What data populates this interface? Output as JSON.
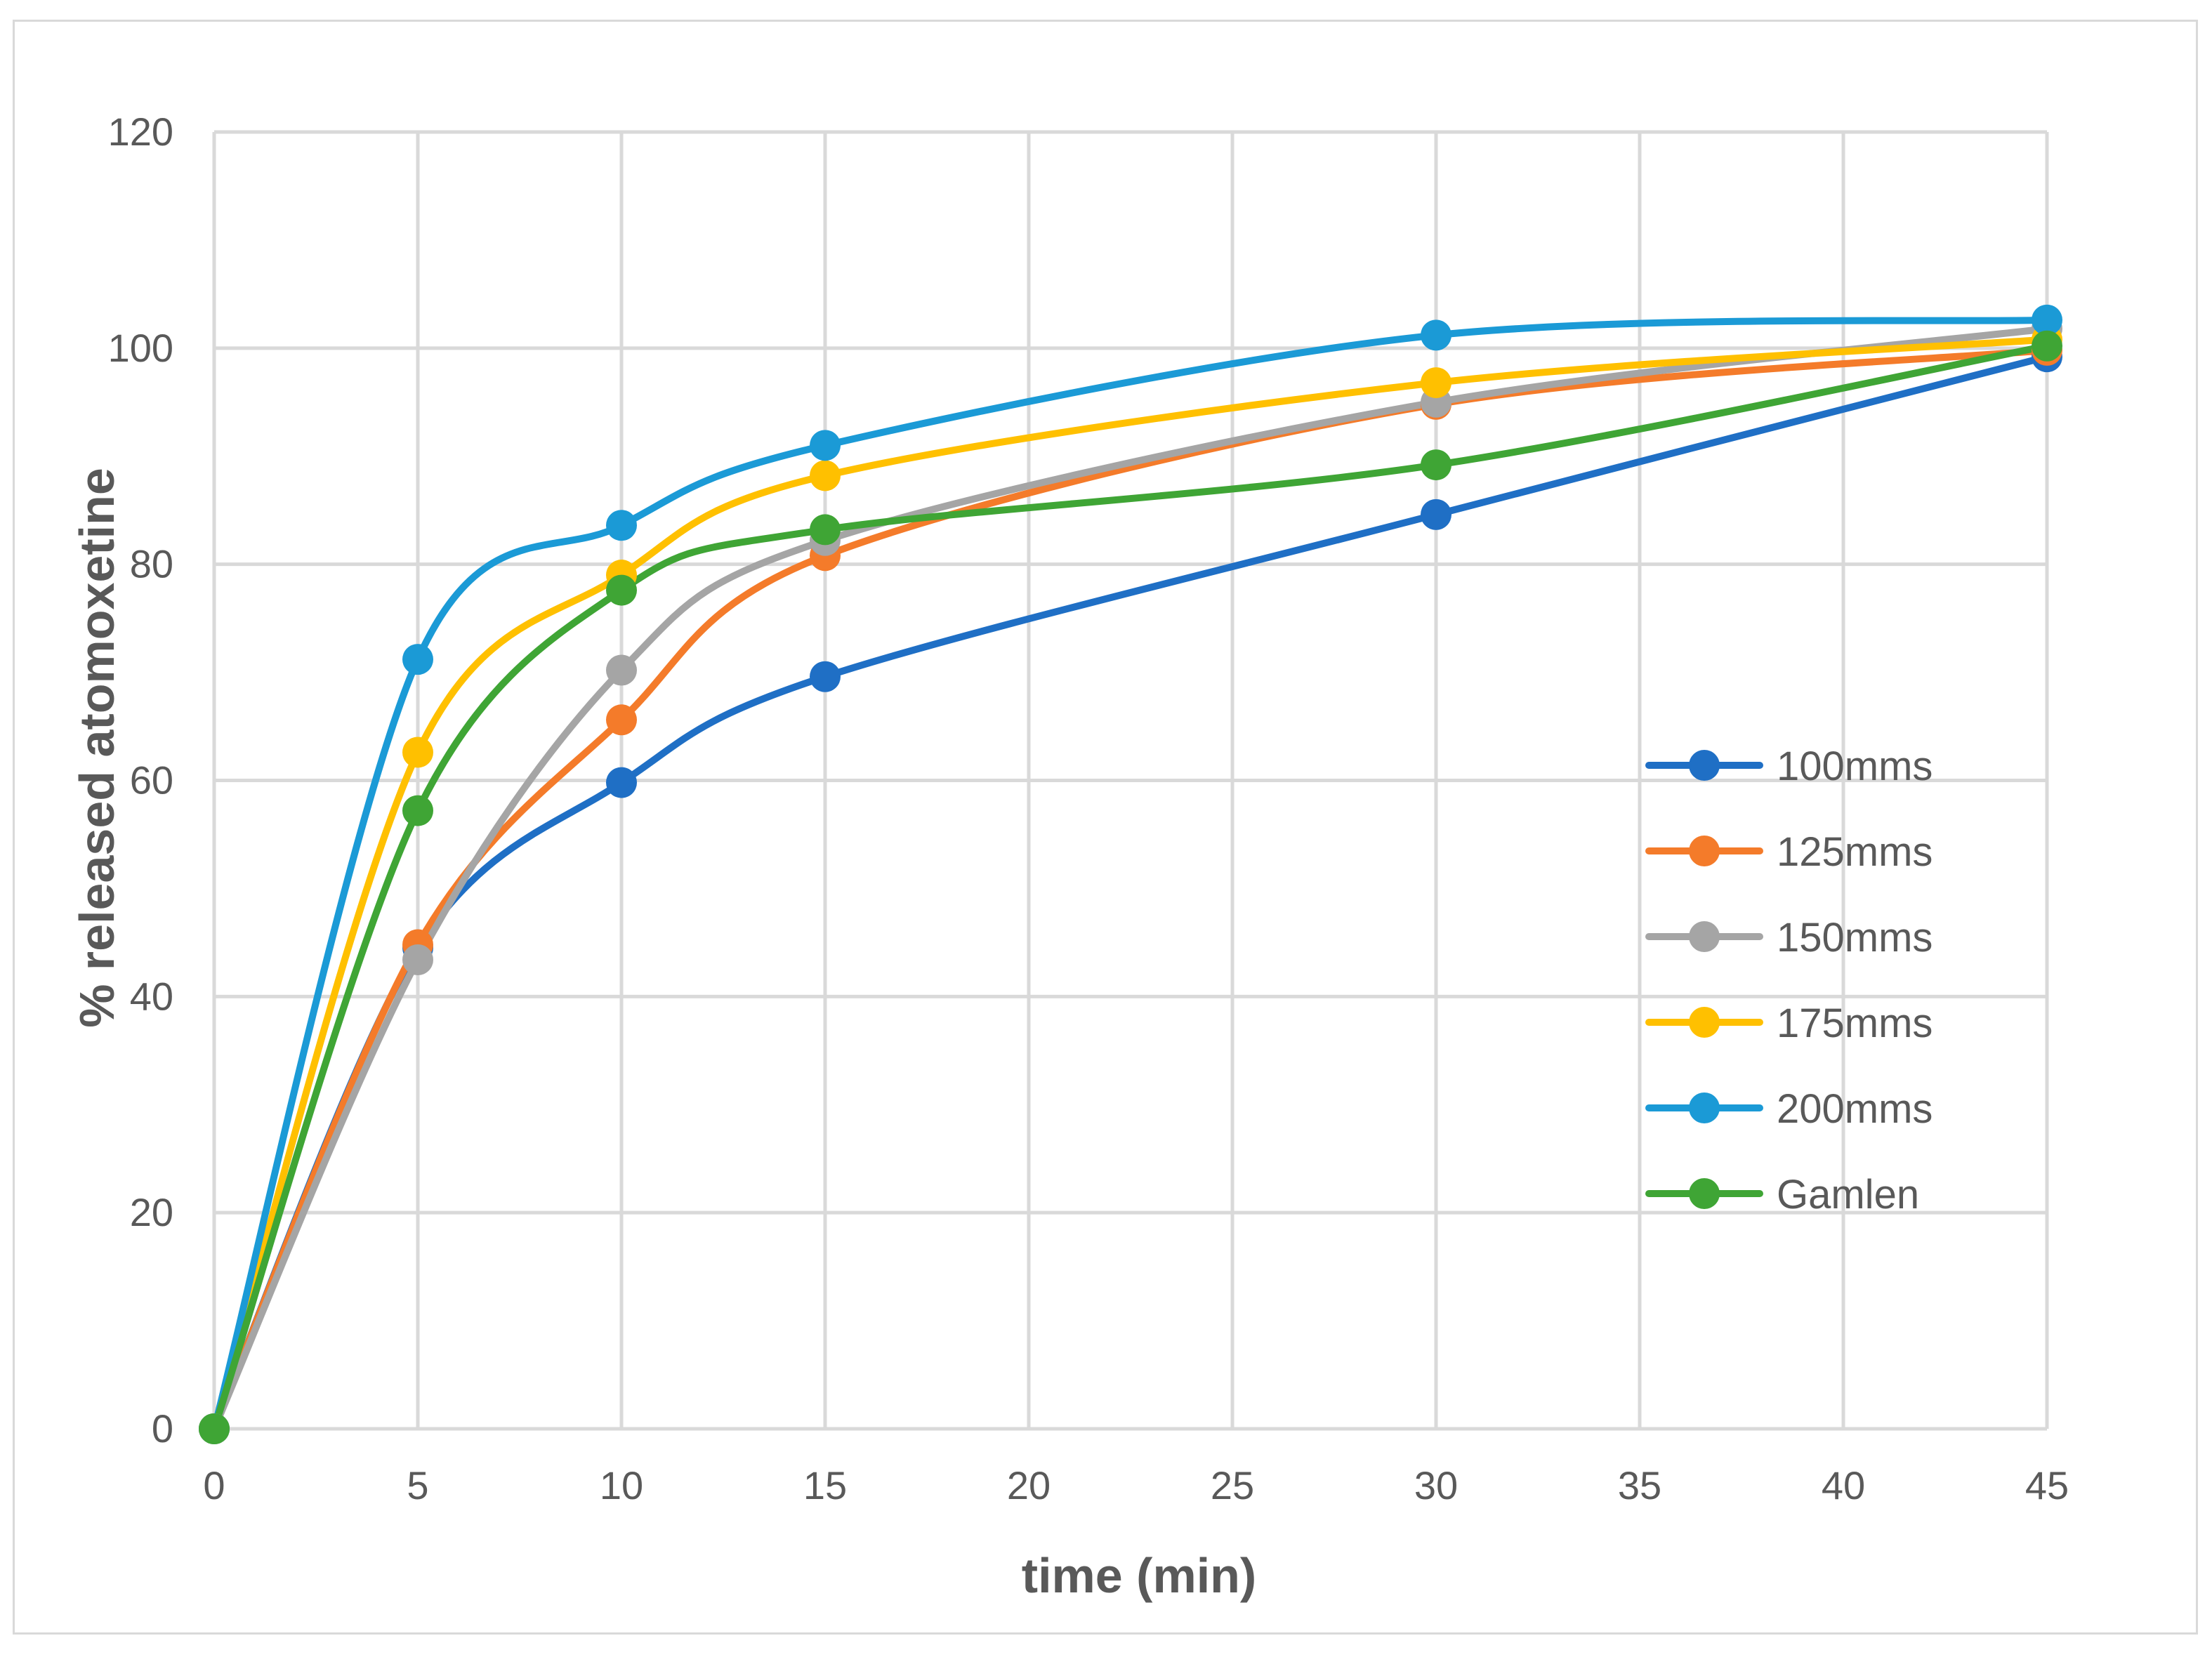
{
  "chart_data": {
    "type": "line",
    "title": "",
    "xlabel": "time (min)",
    "ylabel": "% released atomoxetine",
    "xlim": [
      0,
      45
    ],
    "ylim": [
      0,
      120
    ],
    "xticks": [
      0,
      5,
      10,
      15,
      20,
      25,
      30,
      35,
      40,
      45
    ],
    "yticks": [
      0,
      20,
      40,
      60,
      80,
      100,
      120
    ],
    "grid": true,
    "legend_position": "right",
    "x": [
      0,
      5,
      10,
      15,
      30,
      45
    ],
    "series": [
      {
        "name": "100mms",
        "color": "#1f6fc5",
        "values": [
          0,
          44.5,
          59.8,
          69.6,
          84.6,
          99.2
        ]
      },
      {
        "name": "125mms",
        "color": "#f47b2a",
        "values": [
          0,
          44.8,
          65.6,
          80.8,
          94.8,
          99.8
        ]
      },
      {
        "name": "150mms",
        "color": "#a5a5a5",
        "values": [
          0,
          43.4,
          70.2,
          82.2,
          95.0,
          101.8
        ]
      },
      {
        "name": "175mms",
        "color": "#ffc000",
        "values": [
          0,
          62.6,
          79.0,
          88.2,
          96.8,
          100.8
        ]
      },
      {
        "name": "200mms",
        "color": "#1b9ad6",
        "values": [
          0,
          71.2,
          83.6,
          91.0,
          101.2,
          102.6
        ]
      },
      {
        "name": "Gamlen",
        "color": "#3fa535",
        "values": [
          0,
          57.2,
          77.6,
          83.2,
          89.2,
          100.2
        ]
      }
    ]
  }
}
